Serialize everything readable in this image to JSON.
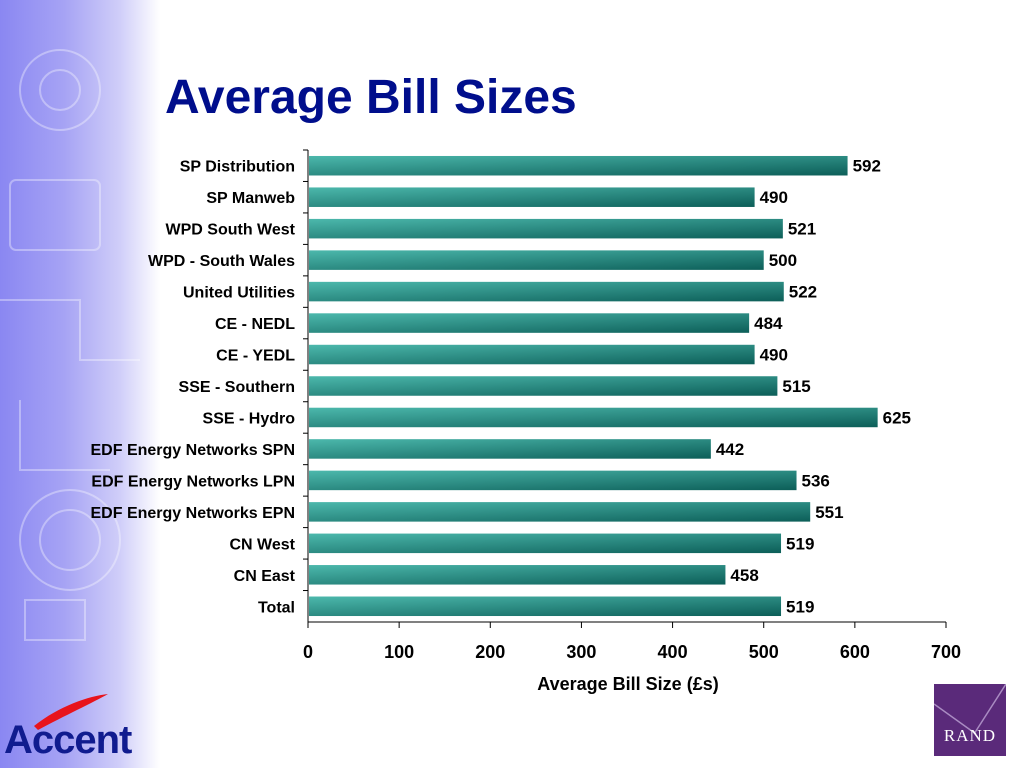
{
  "slide": {
    "title": "Average Bill Sizes",
    "logo_left": "Accent",
    "logo_right": "RAND",
    "colors": {
      "title": "#000e8c",
      "bar_light": "#4cb8ac",
      "bar_dark": "#0c5e58",
      "logo_accent_swoosh": "#e8141c",
      "logo_rand_bg": "#5a2a7a"
    }
  },
  "chart_data": {
    "type": "bar",
    "orientation": "horizontal",
    "title": "",
    "xlabel": "Average Bill Size (£s)",
    "ylabel": "",
    "xlim": [
      0,
      700
    ],
    "xticks": [
      0,
      100,
      200,
      300,
      400,
      500,
      600,
      700
    ],
    "grid": false,
    "legend": "none",
    "data_labels": true,
    "categories": [
      "SP Distribution",
      "SP Manweb",
      "WPD South West",
      "WPD - South Wales",
      "United Utilities",
      "CE - NEDL",
      "CE - YEDL",
      "SSE - Southern",
      "SSE - Hydro",
      "EDF Energy Networks SPN",
      "EDF Energy Networks LPN",
      "EDF Energy Networks EPN",
      "CN West",
      "CN East",
      "Total"
    ],
    "values": [
      592,
      490,
      521,
      500,
      522,
      484,
      490,
      515,
      625,
      442,
      536,
      551,
      519,
      458,
      519
    ]
  }
}
